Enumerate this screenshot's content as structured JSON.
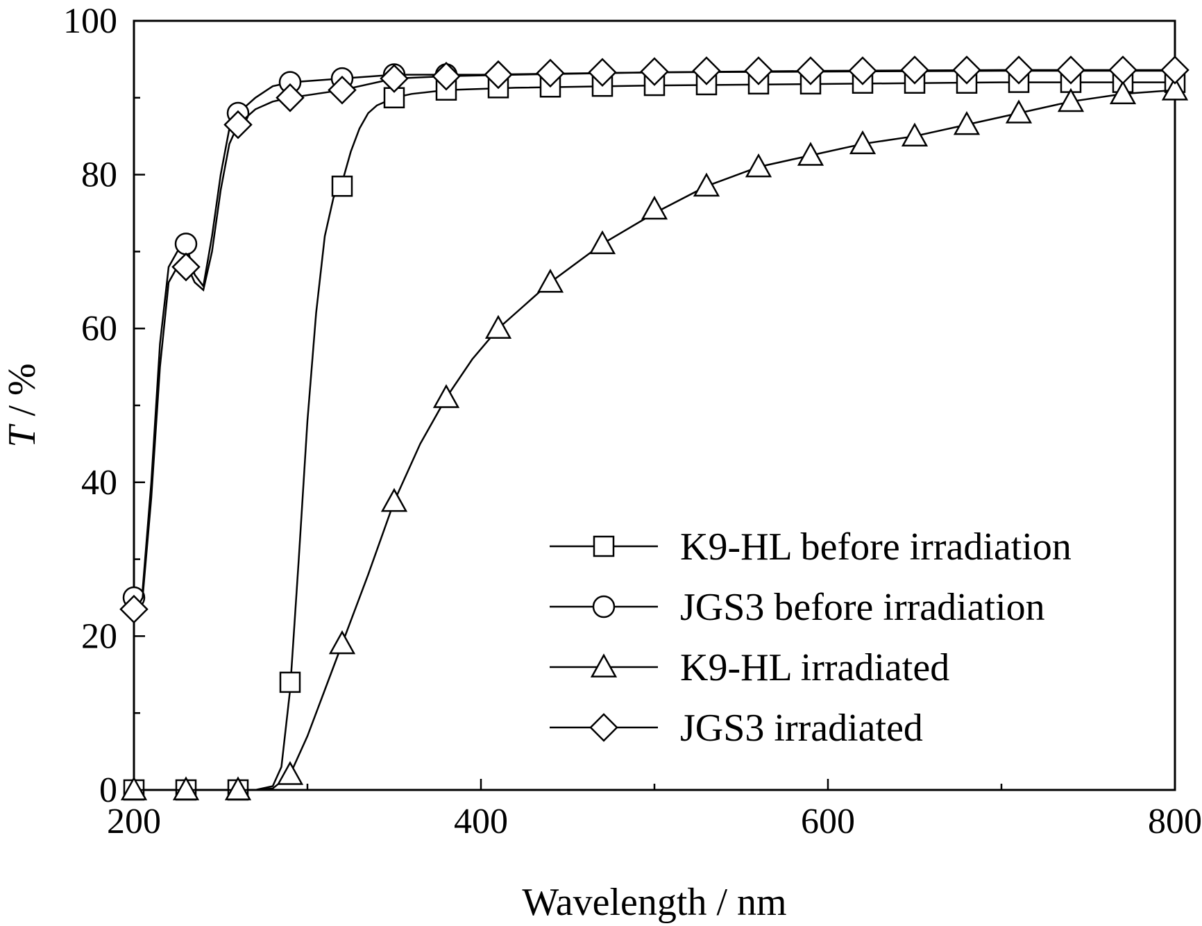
{
  "chart_data": {
    "type": "line",
    "title": "",
    "xlabel": "Wavelength / nm",
    "ylabel_symbol": "T",
    "ylabel_unit": " / %",
    "xlim": [
      200,
      800
    ],
    "ylim": [
      0,
      100
    ],
    "x_ticks": [
      200,
      400,
      600,
      800
    ],
    "y_ticks": [
      0,
      20,
      40,
      60,
      80,
      100
    ],
    "x_minor_step": 100,
    "y_minor_step": 10,
    "grid": false,
    "legend_position": "bottom-right",
    "series": [
      {
        "name": "K9-HL before irradiation",
        "marker": "square",
        "line": [
          [
            200,
            0
          ],
          [
            270,
            0
          ],
          [
            280,
            0.5
          ],
          [
            285,
            3
          ],
          [
            290,
            13
          ],
          [
            295,
            30
          ],
          [
            300,
            48
          ],
          [
            305,
            62
          ],
          [
            310,
            72
          ],
          [
            315,
            77
          ],
          [
            320,
            79
          ],
          [
            325,
            83
          ],
          [
            330,
            86
          ],
          [
            335,
            88
          ],
          [
            340,
            89
          ],
          [
            350,
            90
          ],
          [
            360,
            90.5
          ],
          [
            380,
            91
          ],
          [
            420,
            91.3
          ],
          [
            500,
            91.6
          ],
          [
            600,
            91.8
          ],
          [
            700,
            92
          ],
          [
            800,
            92
          ]
        ],
        "markers": [
          [
            200,
            0
          ],
          [
            230,
            0
          ],
          [
            260,
            0
          ],
          [
            290,
            14
          ],
          [
            320,
            78.5
          ],
          [
            350,
            90
          ],
          [
            380,
            91
          ],
          [
            410,
            91.3
          ],
          [
            440,
            91.4
          ],
          [
            470,
            91.5
          ],
          [
            500,
            91.6
          ],
          [
            530,
            91.7
          ],
          [
            560,
            91.8
          ],
          [
            590,
            91.8
          ],
          [
            620,
            91.9
          ],
          [
            650,
            91.9
          ],
          [
            680,
            91.9
          ],
          [
            710,
            92
          ],
          [
            740,
            92
          ],
          [
            770,
            92
          ],
          [
            800,
            92
          ]
        ]
      },
      {
        "name": "JGS3 before irradiation",
        "marker": "circle",
        "line": [
          [
            200,
            24
          ],
          [
            205,
            26
          ],
          [
            210,
            40
          ],
          [
            215,
            58
          ],
          [
            220,
            68
          ],
          [
            225,
            70
          ],
          [
            230,
            71
          ],
          [
            235,
            67
          ],
          [
            240,
            65.5
          ],
          [
            245,
            72
          ],
          [
            250,
            80
          ],
          [
            255,
            86
          ],
          [
            260,
            88
          ],
          [
            270,
            90
          ],
          [
            280,
            91.5
          ],
          [
            290,
            92
          ],
          [
            320,
            92.5
          ],
          [
            350,
            93
          ],
          [
            400,
            93
          ],
          [
            500,
            93.3
          ],
          [
            600,
            93.4
          ],
          [
            700,
            93.5
          ],
          [
            800,
            93.5
          ]
        ],
        "markers": [
          [
            200,
            25
          ],
          [
            230,
            71
          ],
          [
            260,
            88
          ],
          [
            290,
            92
          ],
          [
            320,
            92.5
          ],
          [
            350,
            93
          ],
          [
            380,
            93
          ]
        ]
      },
      {
        "name": "K9-HL irradiated",
        "marker": "triangle",
        "line": [
          [
            200,
            0
          ],
          [
            270,
            0
          ],
          [
            280,
            0.2
          ],
          [
            290,
            2
          ],
          [
            300,
            7
          ],
          [
            310,
            13
          ],
          [
            320,
            19
          ],
          [
            335,
            28
          ],
          [
            350,
            37.5
          ],
          [
            365,
            45
          ],
          [
            380,
            51
          ],
          [
            395,
            56
          ],
          [
            410,
            60
          ],
          [
            425,
            63
          ],
          [
            440,
            66
          ],
          [
            470,
            71
          ],
          [
            500,
            75
          ],
          [
            530,
            78.5
          ],
          [
            560,
            81
          ],
          [
            590,
            82.5
          ],
          [
            620,
            84
          ],
          [
            650,
            85
          ],
          [
            680,
            86.5
          ],
          [
            710,
            88
          ],
          [
            740,
            89.5
          ],
          [
            770,
            90.5
          ],
          [
            800,
            91
          ]
        ],
        "markers": [
          [
            200,
            0
          ],
          [
            230,
            0
          ],
          [
            260,
            0
          ],
          [
            290,
            2
          ],
          [
            320,
            19
          ],
          [
            350,
            37.5
          ],
          [
            380,
            51
          ],
          [
            410,
            60
          ],
          [
            440,
            66
          ],
          [
            470,
            71
          ],
          [
            500,
            75.5
          ],
          [
            530,
            78.5
          ],
          [
            560,
            81
          ],
          [
            590,
            82.5
          ],
          [
            620,
            84
          ],
          [
            650,
            85
          ],
          [
            680,
            86.5
          ],
          [
            710,
            88
          ],
          [
            740,
            89.5
          ],
          [
            770,
            90.5
          ],
          [
            800,
            91
          ]
        ]
      },
      {
        "name": "JGS3 irradiated",
        "marker": "diamond",
        "line": [
          [
            200,
            23
          ],
          [
            205,
            25
          ],
          [
            210,
            38
          ],
          [
            215,
            55
          ],
          [
            220,
            66
          ],
          [
            225,
            68
          ],
          [
            230,
            68.5
          ],
          [
            235,
            66
          ],
          [
            240,
            65
          ],
          [
            245,
            70
          ],
          [
            250,
            78
          ],
          [
            255,
            84
          ],
          [
            260,
            86.5
          ],
          [
            270,
            88.5
          ],
          [
            280,
            89.5
          ],
          [
            290,
            90
          ],
          [
            320,
            91
          ],
          [
            350,
            92.5
          ],
          [
            380,
            92.8
          ],
          [
            420,
            93
          ],
          [
            500,
            93.3
          ],
          [
            600,
            93.5
          ],
          [
            700,
            93.6
          ],
          [
            800,
            93.6
          ]
        ],
        "markers": [
          [
            200,
            23.5
          ],
          [
            230,
            68
          ],
          [
            260,
            86.5
          ],
          [
            290,
            90
          ],
          [
            320,
            91
          ],
          [
            350,
            92.5
          ],
          [
            380,
            92.8
          ],
          [
            410,
            93
          ],
          [
            440,
            93.2
          ],
          [
            470,
            93.3
          ],
          [
            500,
            93.4
          ],
          [
            530,
            93.5
          ],
          [
            560,
            93.5
          ],
          [
            590,
            93.5
          ],
          [
            620,
            93.5
          ],
          [
            650,
            93.6
          ],
          [
            680,
            93.6
          ],
          [
            710,
            93.6
          ],
          [
            740,
            93.6
          ],
          [
            770,
            93.6
          ],
          [
            800,
            93.6
          ]
        ]
      }
    ]
  }
}
